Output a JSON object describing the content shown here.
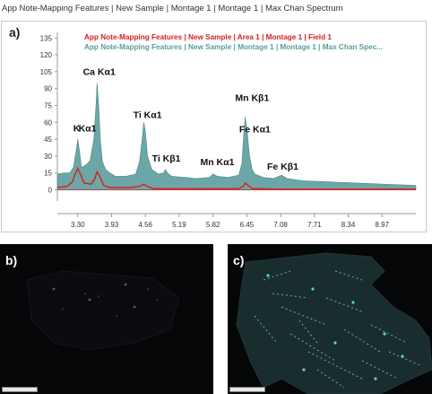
{
  "window": {
    "title": "App Note-Mapping Features | New Sample | Montage 1 | Montage 1 | Max Chan Spectrum"
  },
  "panels": {
    "a_label": "a)",
    "b_label": "b)",
    "c_label": "c)"
  },
  "colors": {
    "area_series": "#5c9c9c",
    "line_series": "#d42020",
    "map_background": "#050607",
    "map_b_dots": "#b03fb8",
    "map_c_features": "#5fd0d0"
  },
  "chart_data": {
    "type": "area",
    "xlabel": "",
    "ylabel": "",
    "xlim": [
      2.92,
      9.6
    ],
    "ylim": [
      -10,
      140
    ],
    "y_ticks": [
      "135",
      "120",
      "105",
      "90",
      "75",
      "60",
      "45",
      "30",
      "15",
      "0"
    ],
    "x_ticks": [
      "3.30",
      "3.93",
      "4.56",
      "5.19",
      "5.82",
      "6.45",
      "7.08",
      "7.71",
      "8.34",
      "8.97"
    ],
    "legend": [
      {
        "name": "App Note-Mapping Features | New Sample | Area 1 | Montage 1 | Field 1",
        "color": "#d42020"
      },
      {
        "name": "App Note-Mapping Features | New Sample | Montage 1 | Montage 1 |  Max Chan Spec...",
        "color": "#5c9c9c"
      }
    ],
    "series": [
      {
        "name": "Max Chan Spectrum",
        "style": "area",
        "x": [
          2.92,
          3.05,
          3.15,
          3.22,
          3.27,
          3.3,
          3.33,
          3.37,
          3.45,
          3.53,
          3.6,
          3.64,
          3.66,
          3.69,
          3.72,
          3.76,
          3.82,
          3.9,
          4.0,
          4.2,
          4.38,
          4.45,
          4.5,
          4.53,
          4.56,
          4.6,
          4.68,
          4.8,
          4.9,
          4.93,
          4.97,
          5.05,
          5.3,
          5.5,
          5.75,
          5.82,
          5.9,
          6.1,
          6.3,
          6.36,
          6.39,
          6.42,
          6.46,
          6.5,
          6.55,
          6.6,
          6.75,
          6.95,
          7.05,
          7.1,
          7.2,
          7.5,
          8.0,
          8.5,
          9.0,
          9.6
        ],
        "y": [
          14,
          15,
          15,
          20,
          35,
          45,
          35,
          20,
          22,
          26,
          45,
          75,
          95,
          75,
          45,
          25,
          18,
          15,
          12,
          12,
          14,
          25,
          45,
          60,
          52,
          30,
          18,
          14,
          15,
          18,
          15,
          12,
          11,
          10,
          11,
          14,
          12,
          11,
          13,
          24,
          48,
          65,
          50,
          30,
          18,
          14,
          11,
          10,
          12,
          13,
          10,
          8,
          7,
          6,
          5,
          4
        ]
      },
      {
        "name": "Area 1 Field 1",
        "style": "line",
        "x": [
          2.92,
          3.1,
          3.2,
          3.26,
          3.3,
          3.34,
          3.42,
          3.55,
          3.62,
          3.66,
          3.71,
          3.78,
          3.9,
          4.3,
          4.45,
          4.53,
          4.6,
          4.7,
          5.0,
          5.5,
          6.0,
          6.3,
          6.38,
          6.42,
          6.47,
          6.55,
          6.7,
          7.0,
          8.0,
          9.6
        ],
        "y": [
          2,
          3,
          7,
          15,
          19,
          15,
          6,
          5,
          10,
          16,
          12,
          4,
          2,
          2,
          3,
          5,
          3,
          1,
          1,
          1,
          1,
          1,
          3,
          6,
          4,
          1,
          1,
          0.5,
          0.5,
          0.5
        ]
      }
    ],
    "annotations": [
      {
        "text": "K",
        "x": 3.28,
        "y": 52
      },
      {
        "text": "Ca Kα1",
        "x": 3.7,
        "y": 102
      },
      {
        "text": "Kα1",
        "x": 3.48,
        "y": 52
      },
      {
        "text": "Ti Kα1",
        "x": 4.6,
        "y": 64
      },
      {
        "text": "Ti Kβ1",
        "x": 4.95,
        "y": 25
      },
      {
        "text": "Mn Kα1",
        "x": 5.9,
        "y": 22
      },
      {
        "text": "Mn Kβ1",
        "x": 6.55,
        "y": 79
      },
      {
        "text": "Fe Kα1",
        "x": 6.6,
        "y": 51
      },
      {
        "text": "Fe Kβ1",
        "x": 7.12,
        "y": 18
      }
    ]
  }
}
